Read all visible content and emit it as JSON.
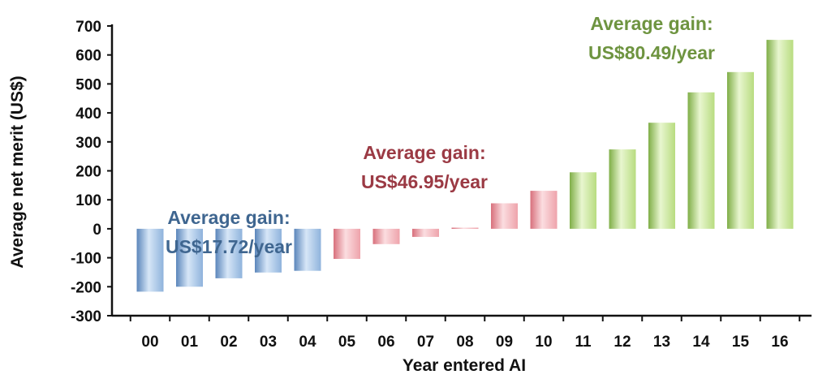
{
  "chart_data": {
    "type": "bar",
    "categories": [
      "00",
      "01",
      "02",
      "03",
      "04",
      "05",
      "06",
      "07",
      "08",
      "09",
      "10",
      "11",
      "12",
      "13",
      "14",
      "15",
      "16"
    ],
    "values": [
      -217,
      -200,
      -171,
      -151,
      -145,
      -104,
      -53,
      -28,
      4,
      88,
      131,
      195,
      274,
      366,
      471,
      541,
      652
    ],
    "xlabel": "Year entered AI",
    "ylabel": "Average net merit (US$)",
    "ylim": [
      -300,
      700
    ],
    "yticks": [
      700,
      600,
      500,
      400,
      300,
      200,
      100,
      0,
      -100,
      -200,
      -300
    ],
    "grid": false,
    "groups": [
      {
        "color": "#8fb3dc",
        "dark": "#5b86bb",
        "light": "#d6e6f7",
        "start": 0,
        "end": 4,
        "annotation": [
          "Average gain:",
          "US$17.72/year"
        ],
        "annotation_color": "#3f6690"
      },
      {
        "color": "#eea3ab",
        "dark": "#d8707c",
        "light": "#fbdde0",
        "start": 5,
        "end": 10,
        "annotation": [
          "Average gain:",
          "US$46.95/year"
        ],
        "annotation_color": "#9b3a44"
      },
      {
        "color": "#b8dc80",
        "dark": "#7fae47",
        "light": "#e8f6cf",
        "start": 11,
        "end": 16,
        "annotation": [
          "Average gain:",
          "US$80.49/year"
        ],
        "annotation_color": "#6e9440"
      }
    ]
  }
}
